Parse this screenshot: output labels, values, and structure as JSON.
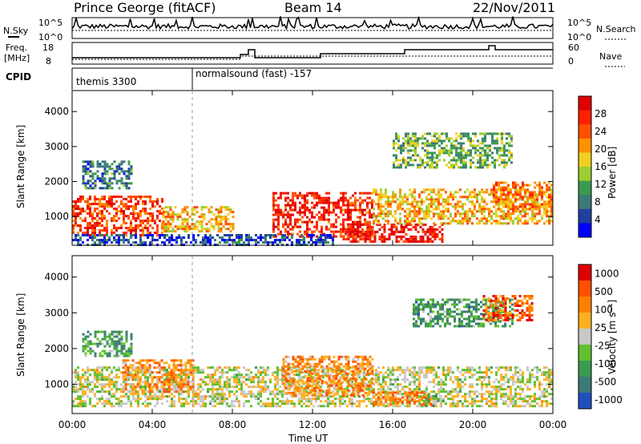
{
  "header": {
    "station": "Prince George (fitACF)",
    "beam": "Beam 14",
    "date": "22/Nov/2011"
  },
  "noise_panel": {
    "left_label": "N.Sky",
    "right_label": "N.Search",
    "left_ticks": [
      "10^5",
      "10^0"
    ],
    "right_ticks": [
      "10^5",
      "10^0"
    ]
  },
  "freq_panel": {
    "left_label_1": "Freq.",
    "left_label_2": "[MHz]",
    "right_label": "Nave",
    "left_ticks": [
      "18",
      "8"
    ],
    "right_ticks": [
      "60",
      "0"
    ]
  },
  "cpid": {
    "label": "CPID",
    "segments": [
      {
        "name": "themis 3300",
        "start_hour": 0,
        "end_hour": 6
      },
      {
        "name": "normalsound (fast) -157",
        "start_hour": 6,
        "end_hour": 24
      }
    ]
  },
  "chart_data": [
    {
      "type": "heatmap",
      "title": "",
      "quantity": "Power",
      "xlabel": "Time UT",
      "ylabel": "Slant Range [km]",
      "colorbar_label": "Power [dB]",
      "colorbar_ticks": [
        "4",
        "8",
        "12",
        "16",
        "20",
        "24",
        "28"
      ],
      "xlim_hours": [
        0,
        24
      ],
      "ylim_km": [
        180,
        4600
      ],
      "y_ticks": [
        "1000",
        "2000",
        "3000",
        "4000"
      ],
      "x_ticks": [
        "00:00",
        "04:00",
        "08:00",
        "12:00",
        "16:00",
        "20:00",
        "00:00"
      ],
      "colors": [
        "#0000ff",
        "#2040a0",
        "#3c7a78",
        "#3c9a50",
        "#9ccd30",
        "#f0d020",
        "#ff9000",
        "#ff5000",
        "#ff2000",
        "#e00000"
      ],
      "regions": [
        {
          "t0": 0.0,
          "t1": 4.5,
          "r0": 500,
          "r1": 1600,
          "level": 0.8
        },
        {
          "t0": 4.5,
          "t1": 8.0,
          "r0": 600,
          "r1": 1300,
          "level": 0.6
        },
        {
          "t0": 10.0,
          "t1": 15.0,
          "r0": 400,
          "r1": 1700,
          "level": 0.85
        },
        {
          "t0": 13.5,
          "t1": 18.5,
          "r0": 300,
          "r1": 800,
          "level": 0.9
        },
        {
          "t0": 15.0,
          "t1": 24.0,
          "r0": 800,
          "r1": 1800,
          "level": 0.6
        },
        {
          "t0": 0.5,
          "t1": 3.0,
          "r0": 1800,
          "r1": 2600,
          "level": 0.25
        },
        {
          "t0": 16.0,
          "t1": 22.0,
          "r0": 2400,
          "r1": 3400,
          "level": 0.4
        },
        {
          "t0": 21.0,
          "t1": 24.0,
          "r0": 1200,
          "r1": 2000,
          "level": 0.7
        },
        {
          "t0": 0.0,
          "t1": 13.0,
          "r0": 200,
          "r1": 500,
          "level": 0.15
        }
      ]
    },
    {
      "type": "heatmap",
      "title": "",
      "quantity": "Velocity",
      "xlabel": "Time UT",
      "ylabel": "Slant Range [km]",
      "colorbar_label": "Velocity [m s⁻¹]",
      "colorbar_ticks": [
        "1000",
        "500",
        "100",
        "25",
        "-25",
        "-100",
        "-500",
        "-1000"
      ],
      "xlim_hours": [
        0,
        24
      ],
      "ylim_km": [
        180,
        4600
      ],
      "y_ticks": [
        "1000",
        "2000",
        "3000",
        "4000"
      ],
      "x_ticks": [
        "00:00",
        "04:00",
        "08:00",
        "12:00",
        "16:00",
        "20:00",
        "00:00"
      ],
      "colors": [
        "#2050c0",
        "#3c7a78",
        "#3c9a50",
        "#60c030",
        "#c8c8c8",
        "#ffb020",
        "#ff8000",
        "#ff5000",
        "#e00000"
      ],
      "regions": [
        {
          "t0": 0.0,
          "t1": 24.0,
          "r0": 400,
          "r1": 1500,
          "level": 0.5
        },
        {
          "t0": 2.5,
          "t1": 6.0,
          "r0": 800,
          "r1": 1700,
          "level": 0.7
        },
        {
          "t0": 10.5,
          "t1": 15.0,
          "r0": 700,
          "r1": 1800,
          "level": 0.7
        },
        {
          "t0": 15.0,
          "t1": 18.0,
          "r0": 400,
          "r1": 800,
          "level": 0.72
        },
        {
          "t0": 17.5,
          "t1": 18.5,
          "r0": 400,
          "r1": 700,
          "level": 0.35
        },
        {
          "t0": 17.0,
          "t1": 22.0,
          "r0": 2600,
          "r1": 3400,
          "level": 0.28
        },
        {
          "t0": 20.5,
          "t1": 23.0,
          "r0": 2800,
          "r1": 3500,
          "level": 0.8
        },
        {
          "t0": 0.5,
          "t1": 3.0,
          "r0": 1800,
          "r1": 2500,
          "level": 0.3
        }
      ]
    }
  ]
}
